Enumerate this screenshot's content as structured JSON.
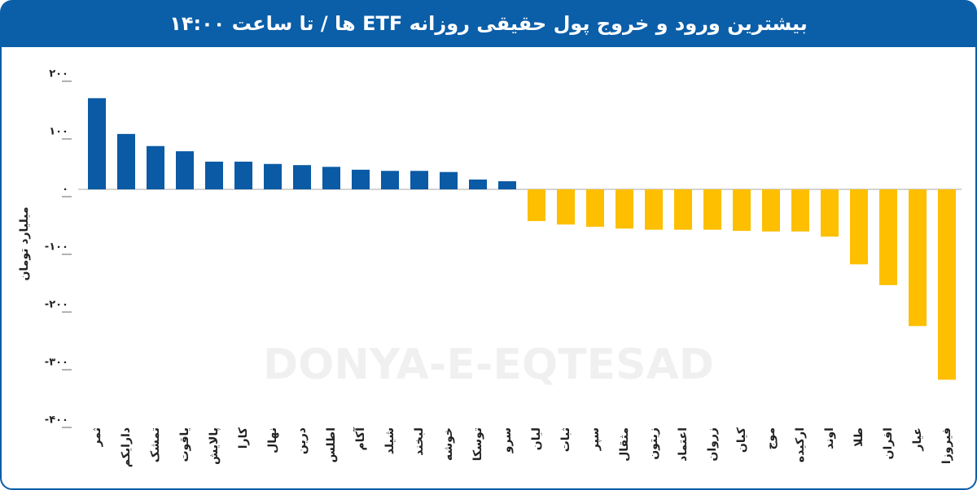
{
  "chart_data": {
    "type": "bar",
    "title": "بیشترین ورود و خروج پول حقیقی روزانه ETF ها / تا ساعت ۱۴:۰۰",
    "y_label": "میلیارد تومان",
    "watermark": "DONYA-E-EQTESAD",
    "categories": [
      "ثمر",
      "دارایکم",
      "تمشک",
      "یاقوت",
      "پالایش",
      "کارا",
      "نهال",
      "درین",
      "اطلس",
      "آکام",
      "شیلد",
      "لبخند",
      "خوشه",
      "توسکا",
      "سرو",
      "لیان",
      "ثبات",
      "سپر",
      "مثقال",
      "زیتون",
      "اعتماد",
      "زروان",
      "کیان",
      "موج",
      "ارکیده",
      "اوند",
      "طلا",
      "افران",
      "عیار",
      "فیروزا"
    ],
    "values": [
      158,
      96,
      75,
      66,
      48,
      48,
      44,
      42,
      39,
      34,
      32,
      32,
      30,
      17,
      14,
      -55,
      -61,
      -65,
      -68,
      -70,
      -70,
      -70,
      -72,
      -73,
      -73,
      -82,
      -130,
      -166,
      -237,
      -330
    ],
    "positive_color": "#0a5aa5",
    "negative_color": "#fdbf00",
    "ylim": [
      -400,
      200
    ],
    "yticks": [
      {
        "value": 200,
        "label": "۲۰۰"
      },
      {
        "value": 100,
        "label": "۱۰۰"
      },
      {
        "value": 0,
        "label": "۰"
      },
      {
        "value": -100,
        "label": "-۱۰۰"
      },
      {
        "value": -200,
        "label": "-۲۰۰"
      },
      {
        "value": -300,
        "label": "-۳۰۰"
      },
      {
        "value": -400,
        "label": "-۴۰۰"
      }
    ],
    "grid": false
  }
}
